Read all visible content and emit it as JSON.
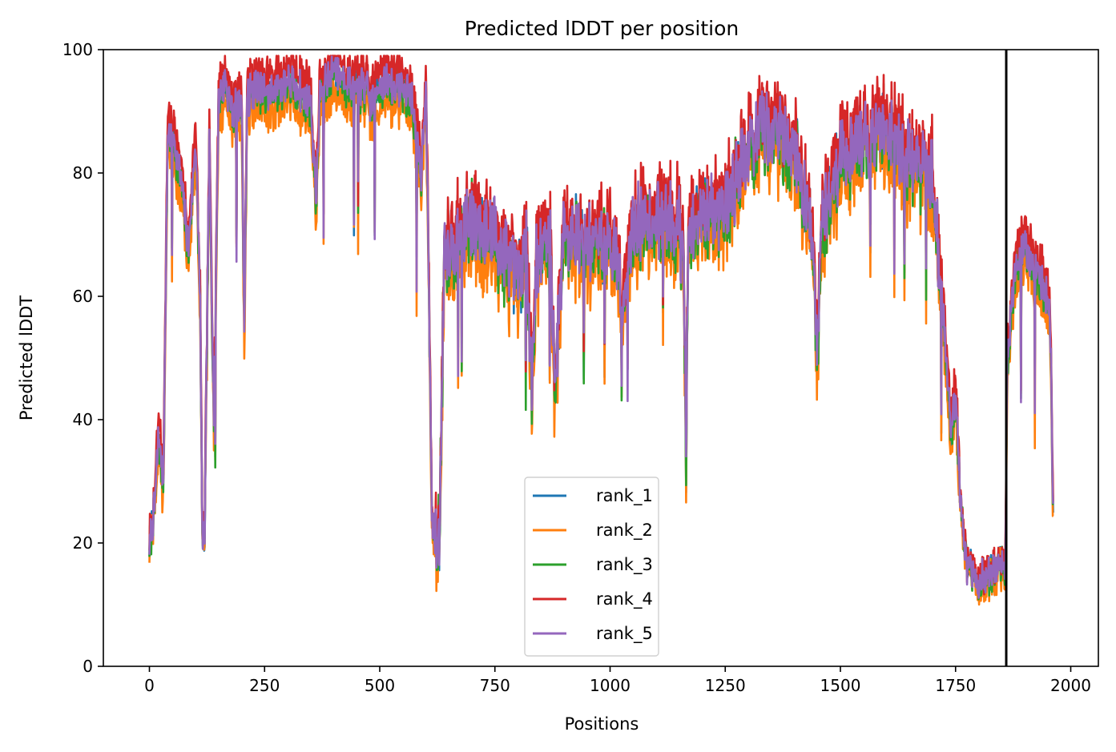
{
  "chart_data": {
    "type": "line",
    "title": "Predicted lDDT per position",
    "xlabel": "Positions",
    "ylabel": "Predicted lDDT",
    "xlim": [
      -100,
      2060
    ],
    "ylim": [
      0,
      100
    ],
    "xticks": [
      0,
      250,
      500,
      750,
      1000,
      1250,
      1500,
      1750,
      2000
    ],
    "yticks": [
      0,
      20,
      40,
      60,
      80,
      100
    ],
    "grid": false,
    "legend_position": "lower center",
    "vertical_line": {
      "x": 1860,
      "color": "#000000"
    },
    "series": [
      {
        "name": "rank_1",
        "color": "#1f77b4",
        "offset": -0.3,
        "amp": 1.0,
        "seed": 11
      },
      {
        "name": "rank_2",
        "color": "#ff7f0e",
        "offset": -3.2,
        "amp": 1.3,
        "seed": 23
      },
      {
        "name": "rank_3",
        "color": "#2ca02c",
        "offset": -0.6,
        "amp": 1.1,
        "seed": 37
      },
      {
        "name": "rank_4",
        "color": "#d62728",
        "offset": 2.6,
        "amp": 1.0,
        "seed": 41
      },
      {
        "name": "rank_5",
        "color": "#9467bd",
        "offset": 0.0,
        "amp": 0.9,
        "seed": 53
      }
    ],
    "profile_x": [
      0,
      10,
      20,
      30,
      40,
      55,
      70,
      85,
      100,
      110,
      115,
      120,
      130,
      140,
      150,
      165,
      180,
      200,
      206,
      212,
      230,
      250,
      300,
      350,
      362,
      370,
      400,
      440,
      470,
      480,
      500,
      550,
      570,
      590,
      600,
      607,
      613,
      620,
      630,
      640,
      700,
      750,
      800,
      820,
      830,
      840,
      870,
      880,
      900,
      950,
      1000,
      1030,
      1050,
      1100,
      1150,
      1160,
      1165,
      1170,
      1200,
      1250,
      1300,
      1350,
      1400,
      1440,
      1450,
      1460,
      1500,
      1550,
      1600,
      1650,
      1700,
      1720,
      1730,
      1740,
      1750,
      1760,
      1775,
      1800,
      1850,
      1858,
      1862,
      1880,
      1900,
      1920,
      1940,
      1955,
      1962
    ],
    "profile_y": [
      20,
      25,
      38,
      30,
      88,
      85,
      78,
      68,
      86,
      60,
      20,
      22,
      85,
      40,
      92,
      95,
      90,
      92,
      55,
      92,
      94,
      93,
      95,
      92,
      75,
      93,
      97,
      94,
      94,
      91,
      95,
      94,
      92,
      80,
      95,
      60,
      25,
      20,
      22,
      68,
      72,
      70,
      62,
      68,
      45,
      66,
      70,
      45,
      72,
      68,
      70,
      60,
      72,
      73,
      72,
      65,
      35,
      70,
      73,
      75,
      84,
      88,
      84,
      70,
      52,
      72,
      83,
      85,
      88,
      82,
      80,
      60,
      50,
      38,
      45,
      28,
      16,
      14,
      16,
      15,
      50,
      65,
      68,
      65,
      62,
      58,
      26
    ]
  }
}
